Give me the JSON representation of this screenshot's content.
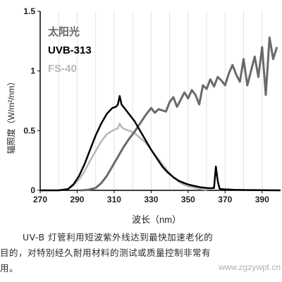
{
  "chart_data": {
    "type": "line",
    "xlabel": "波长（nm）",
    "ylabel": "辐照度（W/m²/nm）",
    "xlim": [
      270,
      400
    ],
    "ylim": [
      0,
      1.5
    ],
    "xticks": [
      "270",
      "290",
      "310",
      "330",
      "350",
      "370",
      "390"
    ],
    "yticks": [
      "0",
      "0.5",
      "1",
      "1.5"
    ],
    "grid": "vertical",
    "legend_position": "top-left",
    "series": [
      {
        "name": "太阳光",
        "color": "#6a6a6a",
        "x": [
          292,
          296,
          300,
          303,
          306,
          309,
          312,
          315,
          318,
          321,
          324,
          327,
          330,
          332,
          334,
          336,
          338,
          340,
          342,
          344,
          346,
          348,
          350,
          352,
          354,
          356,
          358,
          360,
          362,
          364,
          366,
          368,
          370,
          372,
          374,
          376,
          378,
          380,
          382,
          384,
          386,
          388,
          390,
          392,
          394,
          396,
          398
        ],
        "y": [
          0.0,
          0.005,
          0.02,
          0.06,
          0.12,
          0.2,
          0.28,
          0.36,
          0.43,
          0.49,
          0.56,
          0.63,
          0.69,
          0.65,
          0.68,
          0.67,
          0.66,
          0.74,
          0.78,
          0.7,
          0.76,
          0.82,
          0.77,
          0.84,
          0.8,
          0.72,
          0.88,
          0.85,
          0.93,
          0.87,
          0.95,
          0.92,
          0.88,
          0.98,
          1.05,
          0.97,
          0.91,
          1.1,
          0.88,
          1.0,
          1.12,
          0.95,
          1.2,
          0.8,
          1.28,
          1.1,
          1.2
        ]
      },
      {
        "name": "UVB-313",
        "color": "#000000",
        "x": [
          270,
          280,
          285,
          288,
          291,
          294,
          297,
          300,
          303,
          306,
          309,
          311,
          312,
          313,
          314,
          315,
          316,
          318,
          321,
          324,
          327,
          330,
          333,
          336,
          339,
          342,
          345,
          348,
          351,
          354,
          357,
          360,
          362,
          364,
          365,
          366,
          367,
          368,
          370,
          375,
          380,
          390,
          400
        ],
        "y": [
          0.0,
          0.0,
          0.01,
          0.05,
          0.12,
          0.22,
          0.34,
          0.46,
          0.56,
          0.64,
          0.69,
          0.7,
          0.72,
          0.79,
          0.72,
          0.7,
          0.68,
          0.64,
          0.58,
          0.5,
          0.42,
          0.34,
          0.27,
          0.2,
          0.15,
          0.11,
          0.08,
          0.06,
          0.045,
          0.035,
          0.025,
          0.02,
          0.018,
          0.02,
          0.2,
          0.08,
          0.015,
          0.01,
          0.008,
          0.005,
          0.003,
          0.001,
          0.0
        ]
      },
      {
        "name": "FS-40",
        "color": "#b8b8b8",
        "x": [
          280,
          285,
          288,
          291,
          294,
          297,
          300,
          303,
          306,
          309,
          312,
          313,
          314,
          315,
          316,
          318,
          321,
          324,
          327,
          330,
          333,
          336,
          339,
          342,
          345,
          348,
          351,
          354,
          357,
          360
        ],
        "y": [
          0.0,
          0.01,
          0.04,
          0.09,
          0.16,
          0.25,
          0.33,
          0.41,
          0.47,
          0.5,
          0.52,
          0.56,
          0.53,
          0.52,
          0.51,
          0.5,
          0.48,
          0.44,
          0.4,
          0.34,
          0.28,
          0.22,
          0.16,
          0.11,
          0.07,
          0.045,
          0.03,
          0.02,
          0.01,
          0.005
        ]
      }
    ]
  },
  "caption": {
    "line1": "UV-B 灯管利用短波紫外线达到最快加速老化的",
    "line2": "目的，对特别经久耐用材料的测试或质量控制非常有",
    "line3": "用。"
  },
  "watermark": "www.zgzywpt.cn"
}
